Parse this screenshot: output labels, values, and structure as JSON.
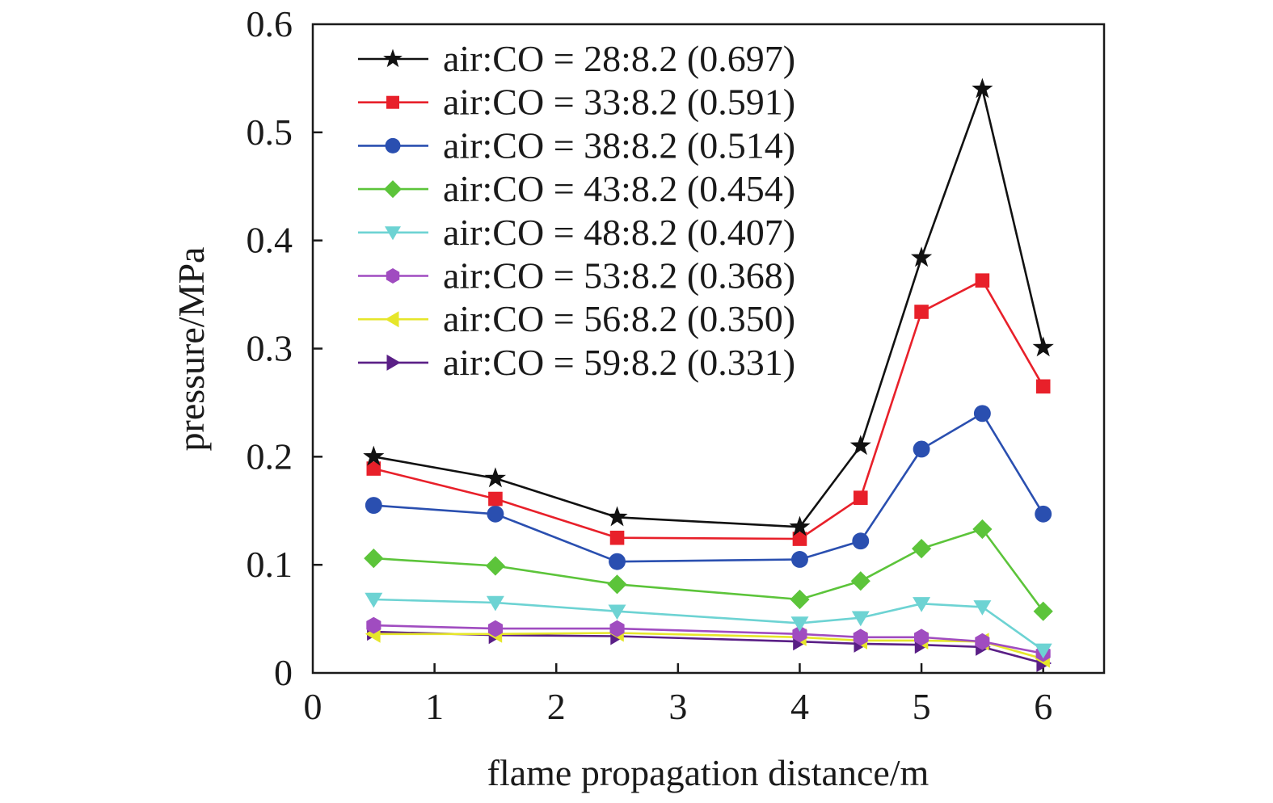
{
  "chart_data": {
    "type": "line",
    "title": "",
    "xlabel": "flame propagation distance/m",
    "ylabel": "pressure/MPa",
    "xlim": [
      0,
      6.5
    ],
    "ylim": [
      0,
      0.6
    ],
    "xticks": [
      "0",
      "1",
      "2",
      "3",
      "4",
      "5",
      "6"
    ],
    "yticks": [
      "0",
      "0.1",
      "0.2",
      "0.3",
      "0.4",
      "0.5",
      "0.6"
    ],
    "grid": false,
    "legend_position": "top-left",
    "x": [
      0.5,
      1.5,
      2.5,
      4.0,
      4.5,
      5.0,
      5.5,
      6.0
    ],
    "series": [
      {
        "name": "air:CO = 28:8.2 (0.697)",
        "color": "#111111",
        "marker": "star",
        "values": [
          0.2,
          0.18,
          0.144,
          0.135,
          0.21,
          0.384,
          0.54,
          0.301
        ]
      },
      {
        "name": "air:CO = 33:8.2 (0.591)",
        "color": "#e8202a",
        "marker": "square",
        "values": [
          0.189,
          0.161,
          0.125,
          0.124,
          0.162,
          0.334,
          0.363,
          0.265
        ]
      },
      {
        "name": "air:CO = 38:8.2 (0.514)",
        "color": "#2a4fb0",
        "marker": "circle",
        "values": [
          0.155,
          0.147,
          0.103,
          0.105,
          0.122,
          0.207,
          0.24,
          0.147
        ]
      },
      {
        "name": "air:CO = 43:8.2 (0.454)",
        "color": "#5cc43a",
        "marker": "diamond",
        "values": [
          0.106,
          0.099,
          0.082,
          0.068,
          0.085,
          0.115,
          0.133,
          0.057
        ]
      },
      {
        "name": "air:CO = 48:8.2 (0.407)",
        "color": "#6dd3d3",
        "marker": "triangle-down",
        "values": [
          0.068,
          0.065,
          0.057,
          0.046,
          0.051,
          0.064,
          0.061,
          0.021
        ]
      },
      {
        "name": "air:CO = 53:8.2 (0.368)",
        "color": "#a04cc0",
        "marker": "hexagon",
        "values": [
          0.044,
          0.041,
          0.041,
          0.036,
          0.033,
          0.033,
          0.029,
          0.018
        ]
      },
      {
        "name": "air:CO = 56:8.2 (0.350)",
        "color": "#e6e62a",
        "marker": "triangle-left",
        "values": [
          0.036,
          0.036,
          0.037,
          0.033,
          0.03,
          0.03,
          0.029,
          0.013
        ]
      },
      {
        "name": "air:CO = 59:8.2 (0.331)",
        "color": "#5a1f86",
        "marker": "triangle-right",
        "values": [
          0.038,
          0.035,
          0.034,
          0.029,
          0.027,
          0.026,
          0.024,
          0.009
        ]
      }
    ]
  }
}
